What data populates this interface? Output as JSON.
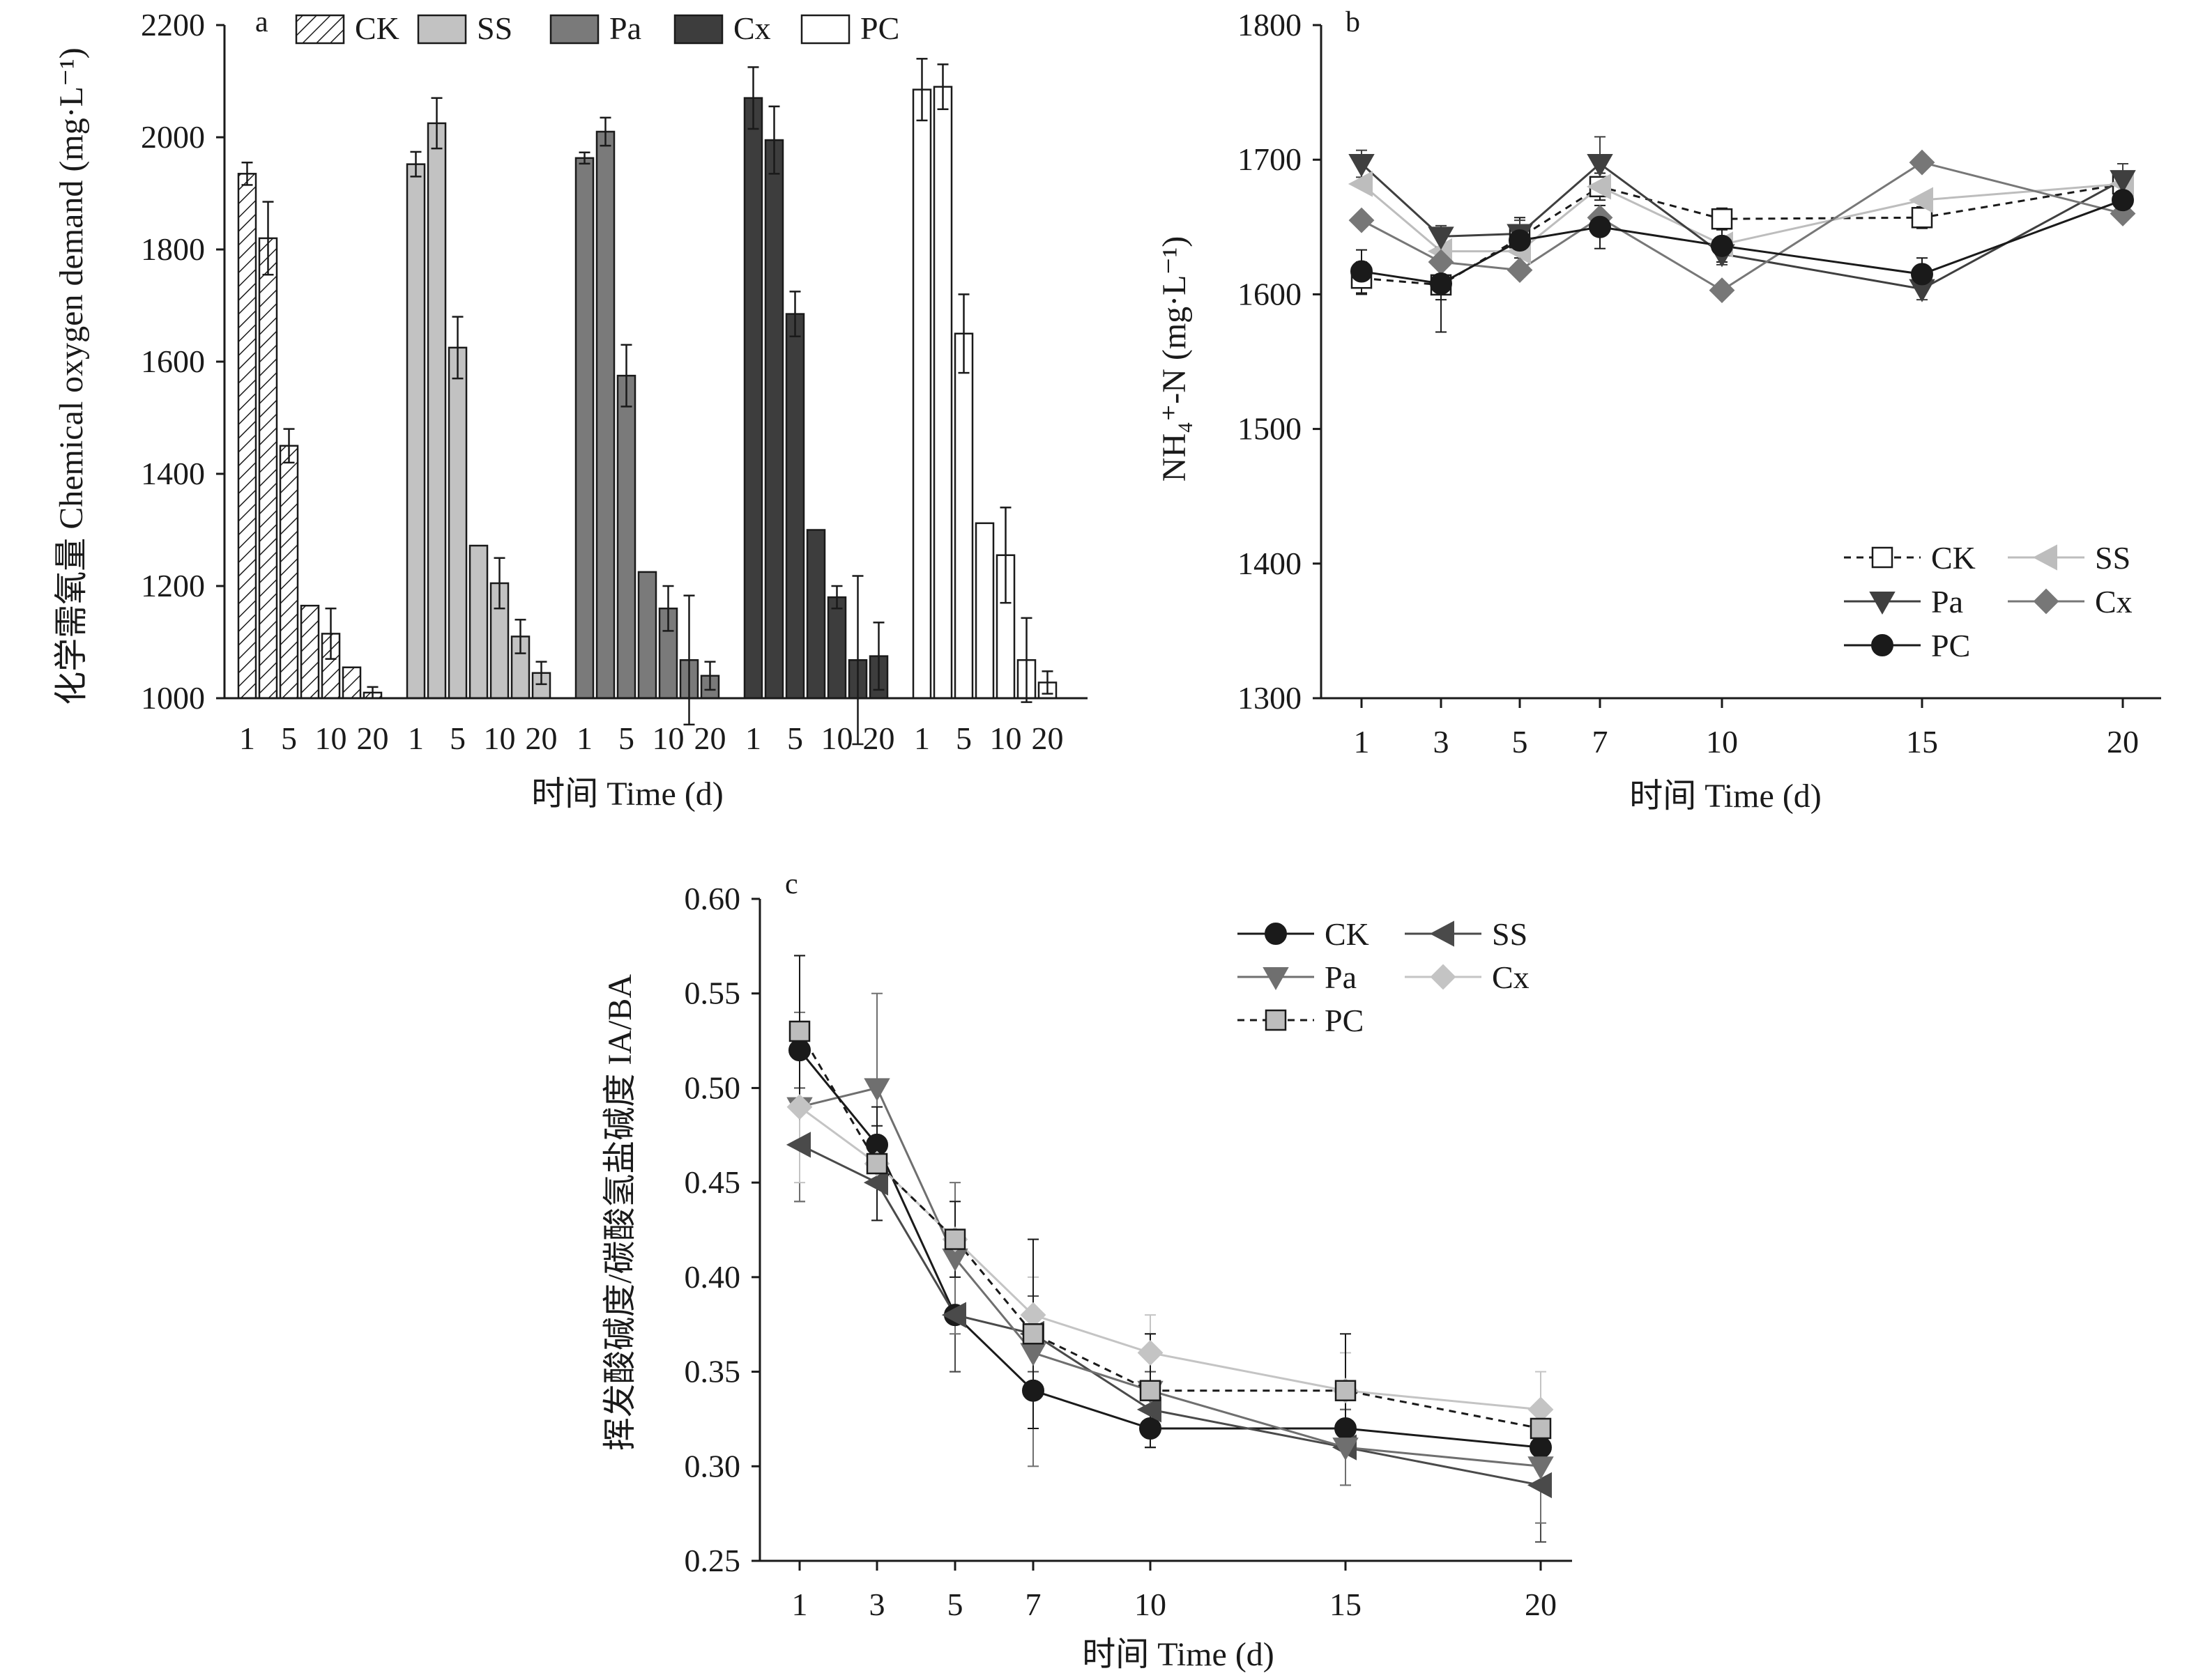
{
  "figure": {
    "colors": {
      "CK": "#ffffff",
      "SS": "#c2c2c2",
      "Pa": "#7a7a7a",
      "Cx": "#3d3d3d",
      "PC": "#ffffff",
      "axis": "#1a1a1a",
      "b_SS": "#bdbdbd",
      "b_Cx": "#777777",
      "c_Pa": "#6f6f6f",
      "c_SS": "#4a4a4a",
      "c_Cx": "#c4c4c4",
      "c_PC_fill": "#bdbdbd"
    }
  },
  "chart_data": [
    {
      "panel": "a",
      "type": "bar",
      "ylabel": "化学需氧量 Chemical oxygen demand (mg·L⁻¹)",
      "xlabel": "时间 Time (d)",
      "ylim": [
        1000,
        2200
      ],
      "yticks": [
        "1000",
        "1200",
        "1400",
        "1600",
        "1800",
        "2000",
        "2200"
      ],
      "xtick_labels": [
        "1",
        "5",
        "10",
        "20"
      ],
      "legend": [
        "CK",
        "SS",
        "Pa",
        "Cx",
        "PC"
      ],
      "groups": [
        {
          "name": "CK",
          "fill": "hatch",
          "values": [
            1935,
            1820,
            1450,
            1165,
            1115,
            1055,
            1010
          ],
          "errors": [
            20,
            65,
            30,
            0,
            45,
            0,
            10
          ]
        },
        {
          "name": "SS",
          "fill": "#c2c2c2",
          "values": [
            1952,
            2025,
            1625,
            1272,
            1205,
            1110,
            1045
          ],
          "errors": [
            22,
            45,
            55,
            0,
            45,
            30,
            20
          ]
        },
        {
          "name": "Pa",
          "fill": "#7a7a7a",
          "values": [
            1963,
            2010,
            1575,
            1225,
            1160,
            1068,
            1040
          ],
          "errors": [
            10,
            25,
            55,
            0,
            40,
            115,
            25
          ]
        },
        {
          "name": "Cx",
          "fill": "#3d3d3d",
          "values": [
            2070,
            1995,
            1685,
            1300,
            1180,
            1068,
            1075
          ],
          "errors": [
            55,
            60,
            40,
            0,
            20,
            150,
            60
          ]
        },
        {
          "name": "PC",
          "fill": "#ffffff",
          "values": [
            2085,
            2090,
            1650,
            1312,
            1255,
            1068,
            1028
          ],
          "errors": [
            55,
            40,
            70,
            0,
            85,
            75,
            20
          ]
        }
      ]
    },
    {
      "panel": "b",
      "type": "line",
      "ylabel": "NH₄⁺-N (mg·L⁻¹)",
      "xlabel": "时间 Time (d)",
      "ylim": [
        1300,
        1800
      ],
      "yticks": [
        "1300",
        "1400",
        "1500",
        "1600",
        "1700",
        "1800"
      ],
      "x": [
        1,
        3,
        5,
        7,
        10,
        15,
        20
      ],
      "legend_rows": [
        [
          "CK",
          "SS"
        ],
        [
          "Pa",
          "Cx"
        ],
        [
          "PC"
        ]
      ],
      "series": [
        {
          "name": "CK",
          "values": [
            1612,
            1607,
            1642,
            1680,
            1656,
            1657,
            1682
          ],
          "errors": [
            12,
            35,
            15,
            10,
            8,
            8,
            8
          ]
        },
        {
          "name": "SS",
          "values": [
            1682,
            1632,
            1632,
            1680,
            1637,
            1670,
            1682
          ]
        },
        {
          "name": "Pa",
          "values": [
            1697,
            1643,
            1645,
            1697,
            1630,
            1604,
            1685
          ],
          "errors": [
            10,
            8,
            10,
            20,
            8,
            8,
            12
          ]
        },
        {
          "name": "Cx",
          "values": [
            1655,
            1624,
            1618,
            1657,
            1603,
            1698,
            1660
          ]
        },
        {
          "name": "PC",
          "values": [
            1617,
            1608,
            1640,
            1650,
            1636,
            1615,
            1670
          ],
          "errors": [
            16,
            12,
            8,
            16,
            12,
            12,
            12
          ]
        }
      ]
    },
    {
      "panel": "c",
      "type": "line",
      "ylabel": "挥发酸碱度/碳酸氢盐碱度 IA/BA",
      "xlabel": "时间 Time (d)",
      "ylim": [
        0.25,
        0.6
      ],
      "yticks": [
        "0.25",
        "0.30",
        "0.35",
        "0.40",
        "0.45",
        "0.50",
        "0.55",
        "0.60"
      ],
      "x": [
        1,
        3,
        5,
        7,
        10,
        15,
        20
      ],
      "legend_rows": [
        [
          "CK",
          "SS"
        ],
        [
          "Pa",
          "Cx"
        ],
        [
          "PC"
        ]
      ],
      "series": [
        {
          "name": "CK",
          "values": [
            0.52,
            0.47,
            0.38,
            0.34,
            0.32,
            0.32,
            0.31
          ],
          "errors": [
            0.05,
            0.01,
            0.03,
            0.02,
            0.01,
            0.01,
            0.01
          ]
        },
        {
          "name": "SS",
          "values": [
            0.47,
            0.45,
            0.38,
            0.37,
            0.33,
            0.31,
            0.29
          ],
          "errors": [
            0.03,
            0.02,
            0.03,
            0.02,
            0.02,
            0.02,
            0.03
          ]
        },
        {
          "name": "Pa",
          "values": [
            0.49,
            0.5,
            0.41,
            0.36,
            0.34,
            0.31,
            0.3
          ],
          "errors": [
            0.05,
            0.05,
            0.04,
            0.06,
            0.03,
            0.02,
            0.03
          ]
        },
        {
          "name": "Cx",
          "values": [
            0.49,
            0.46,
            0.42,
            0.38,
            0.36,
            0.34,
            0.33
          ],
          "errors": [
            0.04,
            0.03,
            0.02,
            0.02,
            0.02,
            0.02,
            0.02
          ]
        },
        {
          "name": "PC",
          "values": [
            0.53,
            0.46,
            0.42,
            0.37,
            0.34,
            0.34,
            0.32
          ],
          "errors": [
            0.04,
            0.03,
            0.02,
            0.05,
            0.03,
            0.03,
            0.01
          ]
        }
      ]
    }
  ]
}
